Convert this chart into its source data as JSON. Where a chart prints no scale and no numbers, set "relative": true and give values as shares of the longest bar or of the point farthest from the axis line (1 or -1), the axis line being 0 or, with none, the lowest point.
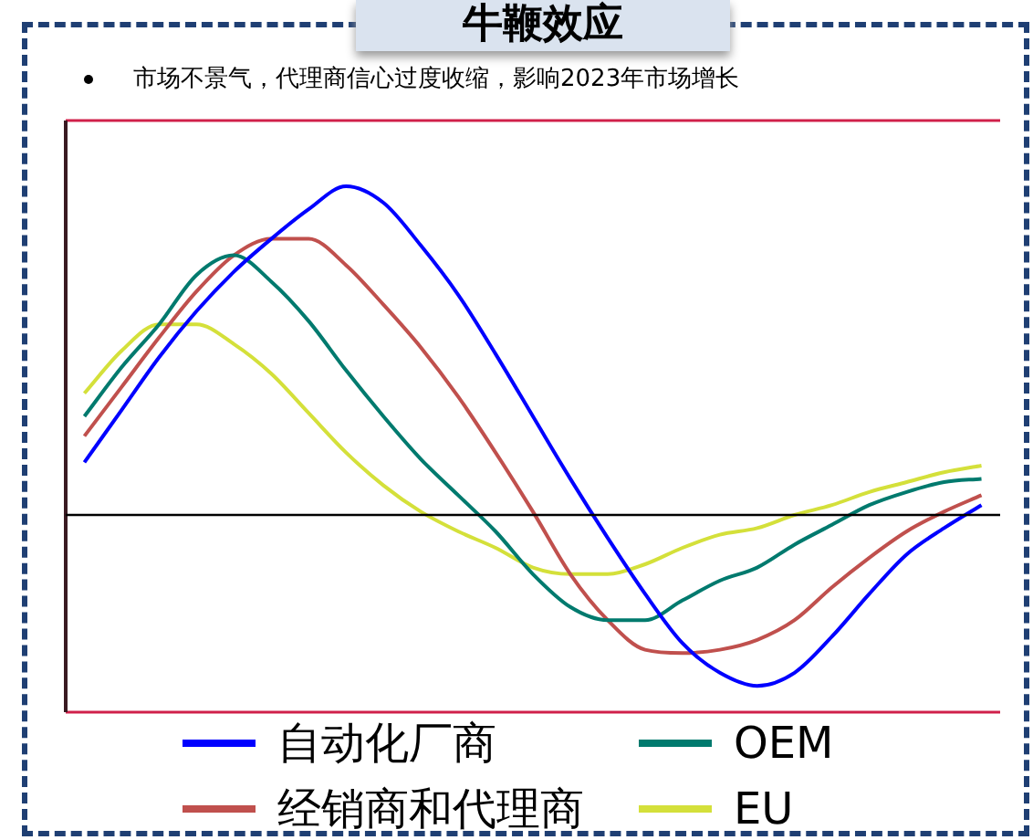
{
  "chart_data": {
    "type": "line",
    "title": "牛鞭效应",
    "subtitle": "市场不景气，代理商信心过度收缩，影响2023年市场增长",
    "relative": true,
    "legend": "bottom",
    "marker": "none",
    "line_style": "solid",
    "categories": [
      null,
      null,
      null,
      null,
      null,
      null,
      null,
      null,
      null,
      null,
      null,
      null,
      null,
      null,
      null,
      null,
      null,
      null,
      null,
      null,
      null,
      null,
      null,
      null,
      null
    ],
    "series": [
      {
        "name": "自动化厂商",
        "color": "#0000ff",
        "values": [
          0.16,
          0.32,
          0.48,
          0.62,
          0.74,
          0.84,
          0.93,
          1.0,
          0.95,
          0.82,
          0.67,
          0.49,
          0.3,
          0.11,
          -0.07,
          -0.24,
          -0.39,
          -0.48,
          -0.52,
          -0.48,
          -0.37,
          -0.24,
          -0.12,
          -0.04,
          0.03
        ]
      },
      {
        "name": "OEM",
        "color": "#007a6e",
        "values": [
          0.3,
          0.45,
          0.58,
          0.73,
          0.79,
          0.71,
          0.59,
          0.44,
          0.3,
          0.17,
          0.06,
          -0.05,
          -0.18,
          -0.28,
          -0.32,
          -0.32,
          -0.26,
          -0.2,
          -0.16,
          -0.09,
          -0.03,
          0.03,
          0.07,
          0.1,
          0.11
        ]
      },
      {
        "name": "经销商和代理商",
        "color": "#c0504d",
        "values": [
          0.24,
          0.39,
          0.54,
          0.68,
          0.79,
          0.84,
          0.84,
          0.76,
          0.64,
          0.51,
          0.36,
          0.19,
          0.01,
          -0.18,
          -0.32,
          -0.41,
          -0.42,
          -0.41,
          -0.38,
          -0.32,
          -0.22,
          -0.13,
          -0.05,
          0.01,
          0.06
        ]
      },
      {
        "name": "EU",
        "color": "#d4e03a",
        "values": [
          0.37,
          0.5,
          0.58,
          0.58,
          0.52,
          0.43,
          0.31,
          0.19,
          0.09,
          0.01,
          -0.05,
          -0.1,
          -0.16,
          -0.18,
          -0.18,
          -0.15,
          -0.1,
          -0.06,
          -0.04,
          0.0,
          0.03,
          0.07,
          0.1,
          0.13,
          0.15
        ]
      }
    ]
  }
}
